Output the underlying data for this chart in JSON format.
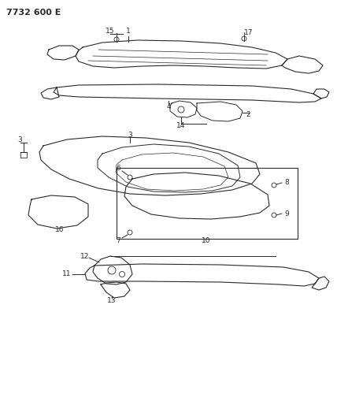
{
  "title": "7732 600 E",
  "bg_color": "#ffffff",
  "line_color": "#2a2a2a",
  "label_fontsize": 6.5,
  "fig_width": 4.28,
  "fig_height": 5.33,
  "dpi": 100
}
